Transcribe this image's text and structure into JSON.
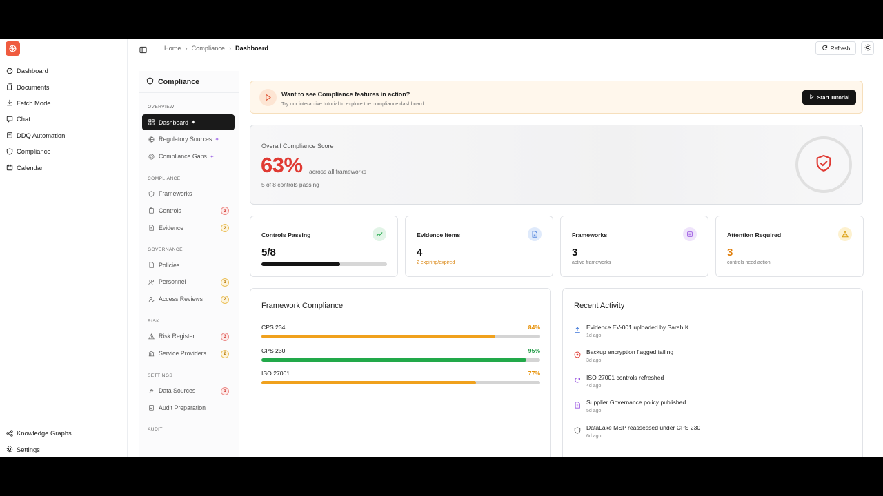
{
  "sidebar": {
    "items": [
      {
        "label": "Dashboard",
        "icon": "dashboard-icon"
      },
      {
        "label": "Documents",
        "icon": "documents-icon"
      },
      {
        "label": "Fetch Mode",
        "icon": "download-icon"
      },
      {
        "label": "Chat",
        "icon": "chat-icon"
      },
      {
        "label": "DDQ Automation",
        "icon": "clipboard-icon"
      },
      {
        "label": "Compliance",
        "icon": "shield-icon"
      },
      {
        "label": "Calendar",
        "icon": "calendar-icon"
      }
    ],
    "bottom": [
      {
        "label": "Knowledge Graphs",
        "icon": "graph-icon"
      },
      {
        "label": "Settings",
        "icon": "gear-icon"
      }
    ]
  },
  "header": {
    "breadcrumb": [
      "Home",
      "Compliance",
      "Dashboard"
    ],
    "refresh_label": "Refresh"
  },
  "compliance_nav": {
    "title": "Compliance",
    "sections": [
      {
        "label": "OVERVIEW"
      },
      {
        "label": "COMPLIANCE"
      },
      {
        "label": "GOVERNANCE"
      },
      {
        "label": "RISK"
      },
      {
        "label": "SETTINGS"
      },
      {
        "label": "AUDIT"
      }
    ],
    "items": {
      "dashboard": {
        "label": "Dashboard"
      },
      "regulatory_sources": {
        "label": "Regulatory Sources"
      },
      "compliance_gaps": {
        "label": "Compliance Gaps"
      },
      "frameworks": {
        "label": "Frameworks"
      },
      "controls": {
        "label": "Controls",
        "badge": "3"
      },
      "evidence": {
        "label": "Evidence",
        "badge": "2"
      },
      "policies": {
        "label": "Policies"
      },
      "personnel": {
        "label": "Personnel",
        "badge": "1"
      },
      "access_reviews": {
        "label": "Access Reviews",
        "badge": "2"
      },
      "risk_register": {
        "label": "Risk Register",
        "badge": "3"
      },
      "service_providers": {
        "label": "Service Providers",
        "badge": "2"
      },
      "data_sources": {
        "label": "Data Sources",
        "badge": "1"
      },
      "audit_preparation": {
        "label": "Audit Preparation"
      }
    }
  },
  "banner": {
    "title": "Want to see Compliance features in action?",
    "subtitle": "Try our interactive tutorial to explore the compliance dashboard",
    "button": "Start Tutorial"
  },
  "score": {
    "label": "Overall Compliance Score",
    "value": "63%",
    "across": "across all frameworks",
    "sub": "5 of 8 controls passing",
    "color": "#e03a33"
  },
  "stats": {
    "controls": {
      "label": "Controls Passing",
      "value": "5/8",
      "progress": 0.625
    },
    "evidence": {
      "label": "Evidence Items",
      "value": "4",
      "sub": "2 expiring/expired"
    },
    "frameworks": {
      "label": "Frameworks",
      "value": "3",
      "sub": "active frameworks"
    },
    "attention": {
      "label": "Attention Required",
      "value": "3",
      "sub": "controls need action"
    }
  },
  "framework_compliance": {
    "title": "Framework Compliance",
    "rows": [
      {
        "name": "CPS 234",
        "pct": "84%",
        "value": 0.84,
        "color": "#f0a11d"
      },
      {
        "name": "CPS 230",
        "pct": "95%",
        "value": 0.95,
        "color": "#22a94a"
      },
      {
        "name": "ISO 27001",
        "pct": "77%",
        "value": 0.77,
        "color": "#f0a11d"
      }
    ]
  },
  "recent_activity": {
    "title": "Recent Activity",
    "items": [
      {
        "text": "Evidence EV-001 uploaded by Sarah K",
        "time": "1d ago",
        "icon": "upload-icon"
      },
      {
        "text": "Backup encryption flagged failing",
        "time": "3d ago",
        "icon": "alert-circle-icon"
      },
      {
        "text": "ISO 27001 controls refreshed",
        "time": "4d ago",
        "icon": "refresh-icon"
      },
      {
        "text": "Supplier Governance policy published",
        "time": "5d ago",
        "icon": "document-icon"
      },
      {
        "text": "DataLake MSP reassessed under CPS 230",
        "time": "6d ago",
        "icon": "shield-icon"
      }
    ]
  }
}
